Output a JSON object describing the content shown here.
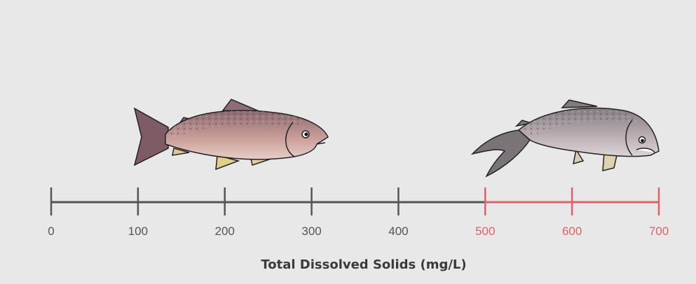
{
  "axis": {
    "title": "Total Dissolved Solids (mg/L)",
    "min": 0,
    "max": 700,
    "ticks": [
      0,
      100,
      200,
      300,
      400,
      500,
      600,
      700
    ],
    "tick_labels": [
      "0",
      "100",
      "200",
      "300",
      "400",
      "500",
      "600",
      "700"
    ],
    "highlight_from": 500,
    "normal_color": "#555555",
    "highlight_color": "#e06068"
  },
  "illustrations": [
    {
      "name": "healthy-fish-icon",
      "range": [
        100,
        300
      ]
    },
    {
      "name": "unhealthy-fish-icon",
      "range": [
        500,
        700
      ]
    }
  ]
}
